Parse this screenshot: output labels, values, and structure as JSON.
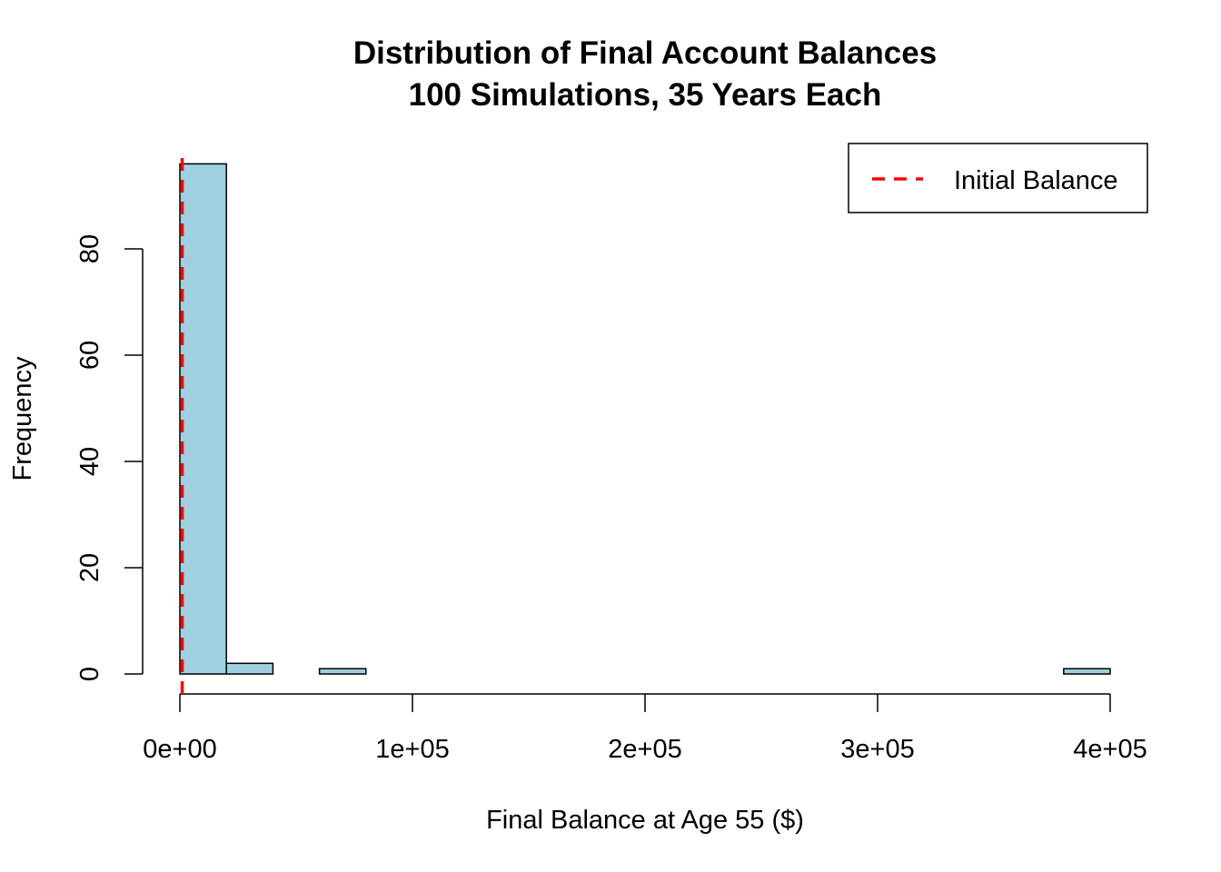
{
  "chart_data": {
    "type": "bar",
    "title": "Distribution of Final Account Balances",
    "subtitle": "100 Simulations, 35 Years Each",
    "xlabel": "Final Balance at Age 55 ($)",
    "ylabel": "Frequency",
    "xlim": [
      0,
      400000
    ],
    "ylim": [
      0,
      96
    ],
    "x_ticks": [
      0,
      100000,
      200000,
      300000,
      400000
    ],
    "x_tick_labels": [
      "0e+00",
      "1e+05",
      "2e+05",
      "3e+05",
      "4e+05"
    ],
    "y_ticks": [
      0,
      20,
      40,
      60,
      80
    ],
    "y_tick_labels": [
      "0",
      "20",
      "40",
      "60",
      "80"
    ],
    "bin_width": 20000,
    "bins": [
      {
        "start": 0,
        "end": 20000,
        "count": 96
      },
      {
        "start": 20000,
        "end": 40000,
        "count": 2
      },
      {
        "start": 40000,
        "end": 60000,
        "count": 0
      },
      {
        "start": 60000,
        "end": 80000,
        "count": 1
      },
      {
        "start": 80000,
        "end": 100000,
        "count": 0
      },
      {
        "start": 100000,
        "end": 120000,
        "count": 0
      },
      {
        "start": 120000,
        "end": 140000,
        "count": 0
      },
      {
        "start": 140000,
        "end": 160000,
        "count": 0
      },
      {
        "start": 160000,
        "end": 180000,
        "count": 0
      },
      {
        "start": 180000,
        "end": 200000,
        "count": 0
      },
      {
        "start": 200000,
        "end": 220000,
        "count": 0
      },
      {
        "start": 220000,
        "end": 240000,
        "count": 0
      },
      {
        "start": 240000,
        "end": 260000,
        "count": 0
      },
      {
        "start": 260000,
        "end": 280000,
        "count": 0
      },
      {
        "start": 280000,
        "end": 300000,
        "count": 0
      },
      {
        "start": 300000,
        "end": 320000,
        "count": 0
      },
      {
        "start": 320000,
        "end": 340000,
        "count": 0
      },
      {
        "start": 340000,
        "end": 360000,
        "count": 0
      },
      {
        "start": 360000,
        "end": 380000,
        "count": 0
      },
      {
        "start": 380000,
        "end": 400000,
        "count": 1
      }
    ],
    "bar_fill": "#a0d0e0",
    "bar_stroke": "#000000",
    "reference_line": {
      "name": "Initial Balance",
      "x": 1000,
      "color": "#ff0000",
      "style": "dashed"
    },
    "legend": {
      "position": "top-right",
      "entries": [
        "Initial Balance"
      ]
    },
    "grid": false
  }
}
